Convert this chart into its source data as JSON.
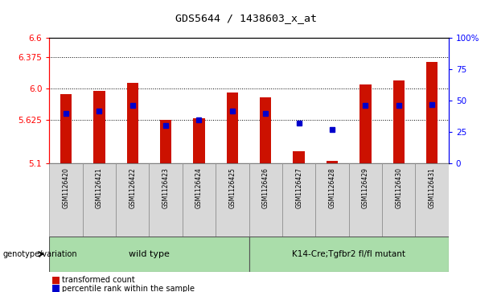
{
  "title": "GDS5644 / 1438603_x_at",
  "samples": [
    "GSM1126420",
    "GSM1126421",
    "GSM1126422",
    "GSM1126423",
    "GSM1126424",
    "GSM1126425",
    "GSM1126426",
    "GSM1126427",
    "GSM1126428",
    "GSM1126429",
    "GSM1126430",
    "GSM1126431"
  ],
  "red_values": [
    5.93,
    5.97,
    6.06,
    5.62,
    5.64,
    5.95,
    5.89,
    5.25,
    5.13,
    6.04,
    6.09,
    6.31
  ],
  "blue_values": [
    40,
    42,
    46,
    30,
    35,
    42,
    40,
    32,
    27,
    46,
    46,
    47
  ],
  "y_min": 5.1,
  "y_max": 6.6,
  "y_ticks_left": [
    5.1,
    5.625,
    6.0,
    6.375,
    6.6
  ],
  "y_ticks_right": [
    0,
    25,
    50,
    75,
    100
  ],
  "bar_color": "#cc1100",
  "marker_color": "#0000cc",
  "group1_label": "wild type",
  "group2_label": "K14-Cre;Tgfbr2 fl/fl mutant",
  "genotype_label": "genotype/variation",
  "legend_red": "transformed count",
  "legend_blue": "percentile rank within the sample",
  "background_color": "#ffffff",
  "dotted_lines": [
    5.625,
    6.0,
    6.375
  ],
  "bar_width": 0.35
}
